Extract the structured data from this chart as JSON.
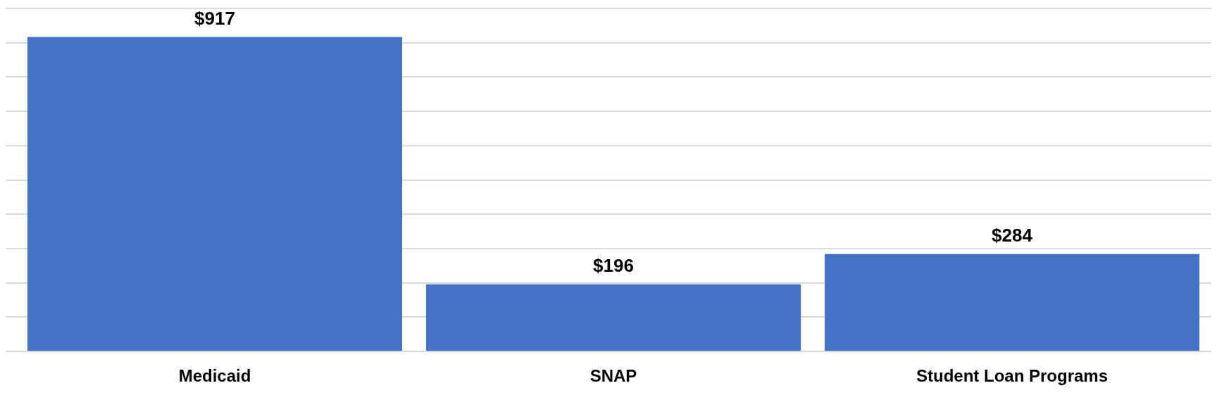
{
  "chart_data": {
    "type": "bar",
    "categories": [
      "Medicaid",
      "SNAP",
      "Student Loan Programs"
    ],
    "values": [
      917,
      196,
      284
    ],
    "value_labels": [
      "$917",
      "$196",
      "$284"
    ],
    "color": "#4472c4",
    "ylim": [
      0,
      1000
    ],
    "yticks": [
      {
        "value": 0,
        "label": null
      },
      {
        "value": 100,
        "label": null
      },
      {
        "value": 200,
        "label": null
      },
      {
        "value": 300,
        "label": null
      },
      {
        "value": 400,
        "label": null
      },
      {
        "value": 500,
        "label": null
      },
      {
        "value": 600,
        "label": null
      },
      {
        "value": 700,
        "label": null
      },
      {
        "value": 800,
        "label": null
      },
      {
        "value": 900,
        "label": null
      },
      {
        "value": 1000,
        "label": null
      }
    ],
    "tick_labels": "x",
    "grid": "y"
  }
}
